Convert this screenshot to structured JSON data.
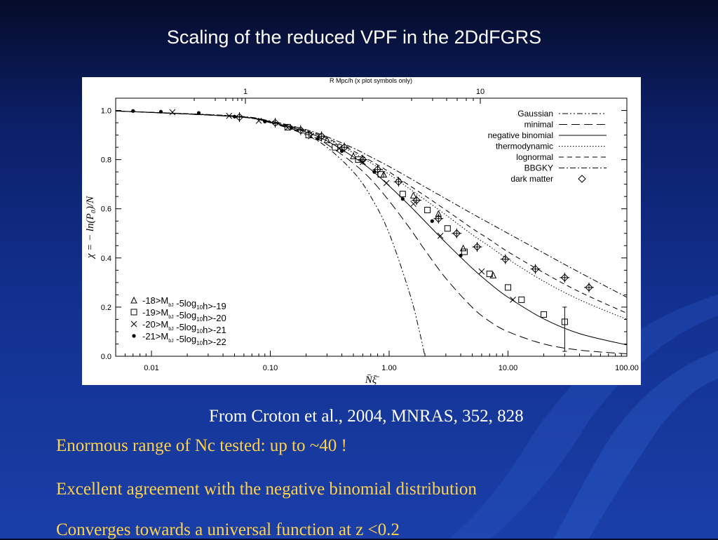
{
  "slide": {
    "title": "Scaling of the reduced VPF in the 2DdFGRS",
    "caption": "From Croton et al., 2004, MNRAS, 352, 828",
    "bullets": [
      "Enormous range of Nc tested: up to ~40 !",
      "Excellent  agreement with the negative binomial distribution",
      "Converges towards a universal function  at z <0.2"
    ]
  },
  "colors": {
    "text_title": "#ffffff",
    "text_bullets": "#ffd24a",
    "chart_bg": "#ffffff"
  },
  "chart_data": {
    "type": "line",
    "xscale": "log",
    "xlim": [
      0.005,
      100
    ],
    "ylim": [
      0,
      1.05
    ],
    "xlabel": "N̄ξ̄",
    "ylabel": "χ = − ln(P₀)/N",
    "top_axis_label": "R Mpc/h (x plot symbols only)",
    "top_ticks": [
      "1",
      "10"
    ],
    "x_ticks": [
      "0.01",
      "0.10",
      "1.00",
      "10.00",
      "100.00"
    ],
    "y_ticks": [
      "0.0",
      "0.2",
      "0.4",
      "0.6",
      "0.8",
      "1.0"
    ],
    "models": [
      {
        "name": "Gaussian",
        "dash": "2,3,8,3,2,3"
      },
      {
        "name": "minimal",
        "dash": "12,6"
      },
      {
        "name": "negative binomial",
        "dash": ""
      },
      {
        "name": "thermodynamic",
        "dash": "1.5,2.5"
      },
      {
        "name": "lognormal",
        "dash": "7,5"
      },
      {
        "name": "BBGKY",
        "dash": "8,3,2,3"
      },
      {
        "name": "dark matter",
        "marker": "diamond"
      }
    ],
    "samples": [
      {
        "label_pre": "-18>M",
        "label_sub": "bJ",
        "label_mid": " -5log",
        "label_sub2": "10",
        "label_post": "h>-19",
        "marker": "triangle"
      },
      {
        "label_pre": "-19>M",
        "label_sub": "bJ",
        "label_mid": " -5log",
        "label_sub2": "10",
        "label_post": "h>-20",
        "marker": "square"
      },
      {
        "label_pre": "-20>M",
        "label_sub": "bJ",
        "label_mid": " -5log",
        "label_sub2": "10",
        "label_post": "h>-21",
        "marker": "cross"
      },
      {
        "label_pre": "-21>M",
        "label_sub": "bJ",
        "label_mid": " -5log",
        "label_sub2": "10",
        "label_post": "h>-22",
        "marker": "dot"
      }
    ],
    "curves": {
      "negative_binomial": [
        [
          0.005,
          0.998
        ],
        [
          0.05,
          0.976
        ],
        [
          0.1,
          0.953
        ],
        [
          0.2,
          0.912
        ],
        [
          0.3,
          0.876
        ],
        [
          0.5,
          0.811
        ],
        [
          0.7,
          0.76
        ],
        [
          1,
          0.693
        ],
        [
          1.5,
          0.611
        ],
        [
          2,
          0.549
        ],
        [
          3,
          0.462
        ],
        [
          5,
          0.358
        ],
        [
          7,
          0.297
        ],
        [
          10,
          0.24
        ],
        [
          20,
          0.152
        ],
        [
          40,
          0.092
        ],
        [
          100,
          0.046
        ]
      ],
      "thermodynamic": [
        [
          0.005,
          0.998
        ],
        [
          0.05,
          0.976
        ],
        [
          0.1,
          0.954
        ],
        [
          0.2,
          0.916
        ],
        [
          0.3,
          0.883
        ],
        [
          0.5,
          0.828
        ],
        [
          0.7,
          0.787
        ],
        [
          1,
          0.74
        ],
        [
          1.5,
          0.68
        ],
        [
          2,
          0.637
        ],
        [
          3,
          0.575
        ],
        [
          5,
          0.495
        ],
        [
          7,
          0.447
        ],
        [
          10,
          0.395
        ],
        [
          20,
          0.305
        ],
        [
          40,
          0.23
        ],
        [
          100,
          0.15
        ]
      ],
      "lognormal": [
        [
          0.005,
          0.998
        ],
        [
          0.05,
          0.977
        ],
        [
          0.1,
          0.955
        ],
        [
          0.2,
          0.918
        ],
        [
          0.3,
          0.887
        ],
        [
          0.5,
          0.835
        ],
        [
          0.7,
          0.795
        ],
        [
          1,
          0.75
        ],
        [
          1.5,
          0.693
        ],
        [
          2,
          0.653
        ],
        [
          3,
          0.595
        ],
        [
          5,
          0.52
        ],
        [
          7,
          0.475
        ],
        [
          10,
          0.425
        ],
        [
          20,
          0.34
        ],
        [
          40,
          0.262
        ],
        [
          100,
          0.175
        ]
      ],
      "BBGKY": [
        [
          0.005,
          0.998
        ],
        [
          0.05,
          0.978
        ],
        [
          0.1,
          0.957
        ],
        [
          0.2,
          0.922
        ],
        [
          0.3,
          0.893
        ],
        [
          0.5,
          0.847
        ],
        [
          0.7,
          0.811
        ],
        [
          1,
          0.772
        ],
        [
          1.5,
          0.724
        ],
        [
          2,
          0.689
        ],
        [
          3,
          0.641
        ],
        [
          5,
          0.58
        ],
        [
          7,
          0.541
        ],
        [
          10,
          0.5
        ],
        [
          20,
          0.42
        ],
        [
          40,
          0.341
        ],
        [
          100,
          0.24
        ]
      ],
      "minimal": [
        [
          0.005,
          0.998
        ],
        [
          0.05,
          0.975
        ],
        [
          0.1,
          0.951
        ],
        [
          0.2,
          0.905
        ],
        [
          0.3,
          0.862
        ],
        [
          0.5,
          0.785
        ],
        [
          0.7,
          0.72
        ],
        [
          1,
          0.632
        ],
        [
          1.5,
          0.519
        ],
        [
          2,
          0.432
        ],
        [
          3,
          0.317
        ],
        [
          5,
          0.199
        ],
        [
          7,
          0.142
        ],
        [
          10,
          0.1
        ],
        [
          20,
          0.05
        ],
        [
          40,
          0.025
        ],
        [
          100,
          0.01
        ]
      ],
      "Gaussian": [
        [
          0.005,
          0.998
        ],
        [
          0.05,
          0.975
        ],
        [
          0.1,
          0.95
        ],
        [
          0.2,
          0.9
        ],
        [
          0.3,
          0.85
        ],
        [
          0.5,
          0.75
        ],
        [
          0.7,
          0.65
        ],
        [
          1,
          0.5
        ],
        [
          1.5,
          0.25
        ],
        [
          1.8,
          0.1
        ],
        [
          2,
          0.0
        ]
      ]
    },
    "dark_matter_points": [
      [
        0.055,
        0.973
      ],
      [
        0.11,
        0.95
      ],
      [
        0.18,
        0.92
      ],
      [
        0.27,
        0.895
      ],
      [
        0.42,
        0.85
      ],
      [
        0.6,
        0.8
      ],
      [
        0.8,
        0.76
      ],
      [
        1.2,
        0.71
      ],
      [
        1.7,
        0.635
      ],
      [
        2.6,
        0.56
      ],
      [
        3.7,
        0.5
      ],
      [
        5.5,
        0.445
      ],
      [
        9.5,
        0.395
      ],
      [
        17,
        0.355
      ],
      [
        30,
        0.32
      ],
      [
        48,
        0.28
      ]
    ],
    "galaxy_points": [
      {
        "marker": "dot",
        "points": [
          [
            0.007,
            0.998
          ],
          [
            0.012,
            0.995
          ],
          [
            0.025,
            0.99
          ],
          [
            0.05,
            0.975
          ],
          [
            0.09,
            0.955
          ],
          [
            0.15,
            0.93
          ],
          [
            0.25,
            0.885
          ],
          [
            0.4,
            0.835
          ],
          [
            0.75,
            0.75
          ],
          [
            1.3,
            0.64
          ],
          [
            2.3,
            0.55
          ],
          [
            4,
            0.41
          ]
        ]
      },
      {
        "marker": "cross",
        "points": [
          [
            0.015,
            0.993
          ],
          [
            0.045,
            0.978
          ],
          [
            0.08,
            0.958
          ],
          [
            0.14,
            0.93
          ],
          [
            0.22,
            0.895
          ],
          [
            0.38,
            0.845
          ],
          [
            0.6,
            0.79
          ],
          [
            0.95,
            0.705
          ],
          [
            1.6,
            0.62
          ],
          [
            2.7,
            0.49
          ],
          [
            6,
            0.345
          ],
          [
            11,
            0.23
          ]
        ]
      },
      {
        "marker": "square",
        "points": [
          [
            0.14,
            0.932
          ],
          [
            0.21,
            0.9
          ],
          [
            0.35,
            0.85
          ],
          [
            0.55,
            0.8
          ],
          [
            0.85,
            0.74
          ],
          [
            1.3,
            0.66
          ],
          [
            2.1,
            0.595
          ],
          [
            3.1,
            0.52
          ],
          [
            4.3,
            0.425
          ],
          [
            7,
            0.335
          ],
          [
            10,
            0.28
          ],
          [
            13,
            0.23
          ],
          [
            20,
            0.17
          ],
          [
            30,
            0.14
          ]
        ]
      },
      {
        "marker": "triangle",
        "points": [
          [
            0.3,
            0.88
          ],
          [
            0.5,
            0.815
          ],
          [
            0.9,
            0.74
          ],
          [
            1.6,
            0.655
          ],
          [
            2.6,
            0.58
          ],
          [
            4.2,
            0.44
          ],
          [
            7.5,
            0.33
          ]
        ]
      }
    ]
  }
}
